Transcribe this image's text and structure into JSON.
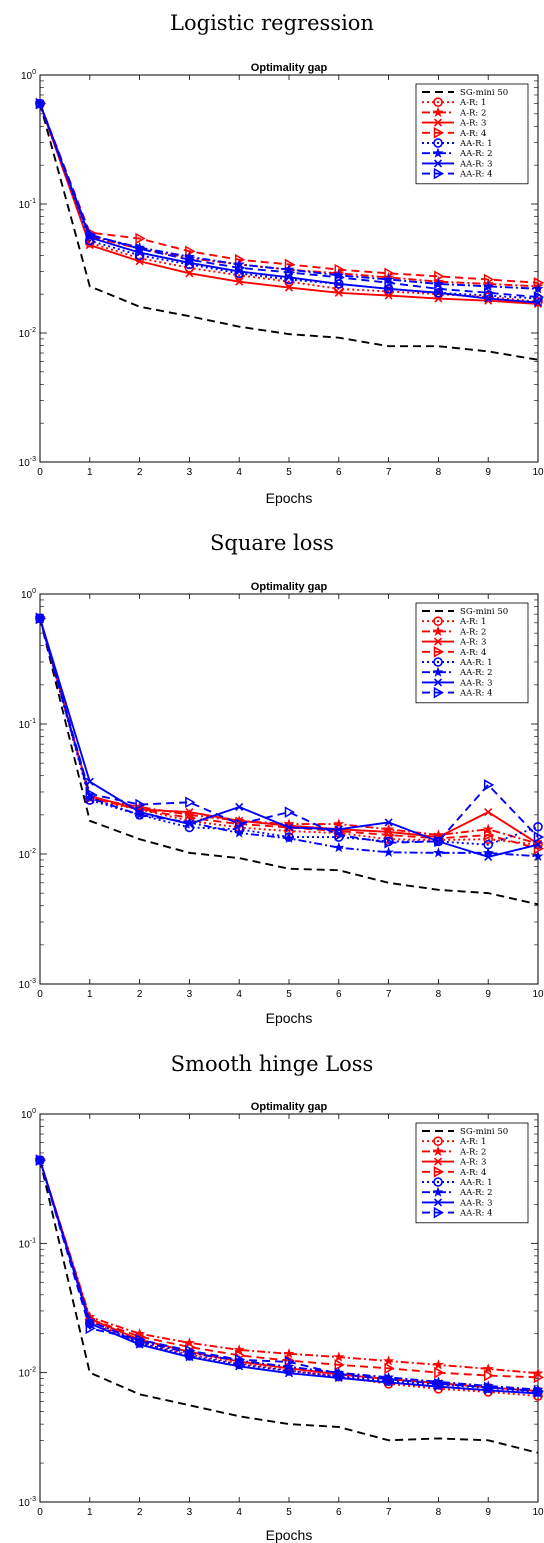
{
  "chart_data": [
    {
      "type": "line",
      "title": "Logistic regression",
      "subtitle": "Optimality gap",
      "xlabel": "Epochs",
      "ylabel": "",
      "yscale": "log",
      "xlim": [
        0,
        10
      ],
      "ylim": [
        0.001,
        1
      ],
      "x": [
        0,
        1,
        2,
        3,
        4,
        5,
        6,
        7,
        8,
        9,
        10
      ],
      "grid": false,
      "legend": "top-right",
      "series": [
        {
          "name": "SG-mini 50",
          "color": "#000000",
          "dash": "dashed",
          "marker": "none",
          "values": [
            0.6,
            0.023,
            0.016,
            0.0135,
            0.0112,
            0.0098,
            0.0092,
            0.0079,
            0.0079,
            0.0072,
            0.0062
          ]
        },
        {
          "name": "A-R: 1",
          "color": "#ff0000",
          "dash": "dotted",
          "marker": "circle",
          "values": [
            0.6,
            0.05,
            0.038,
            0.032,
            0.028,
            0.025,
            0.022,
            0.021,
            0.02,
            0.019,
            0.0175
          ]
        },
        {
          "name": "A-R: 2",
          "color": "#ff0000",
          "dash": "dashdot",
          "marker": "star",
          "values": [
            0.6,
            0.056,
            0.045,
            0.038,
            0.034,
            0.031,
            0.029,
            0.027,
            0.025,
            0.024,
            0.023
          ]
        },
        {
          "name": "A-R: 3",
          "color": "#ff0000",
          "dash": "solid",
          "marker": "x",
          "values": [
            0.6,
            0.048,
            0.036,
            0.029,
            0.025,
            0.0225,
            0.0205,
            0.0195,
            0.0185,
            0.0178,
            0.0168
          ]
        },
        {
          "name": "A-R: 4",
          "color": "#ff0000",
          "dash": "dashed",
          "marker": "triangle",
          "values": [
            0.6,
            0.06,
            0.054,
            0.043,
            0.037,
            0.034,
            0.031,
            0.029,
            0.0275,
            0.026,
            0.0245
          ]
        },
        {
          "name": "AA-R: 1",
          "color": "#0000ff",
          "dash": "dotted",
          "marker": "circle",
          "values": [
            0.6,
            0.052,
            0.04,
            0.034,
            0.029,
            0.026,
            0.024,
            0.022,
            0.0205,
            0.0195,
            0.0185
          ]
        },
        {
          "name": "AA-R: 2",
          "color": "#0000ff",
          "dash": "dashdot",
          "marker": "star",
          "values": [
            0.6,
            0.057,
            0.046,
            0.039,
            0.034,
            0.031,
            0.028,
            0.026,
            0.024,
            0.023,
            0.022
          ]
        },
        {
          "name": "AA-R: 3",
          "color": "#0000ff",
          "dash": "solid",
          "marker": "x",
          "values": [
            0.6,
            0.055,
            0.042,
            0.035,
            0.03,
            0.027,
            0.024,
            0.022,
            0.0205,
            0.0185,
            0.0172
          ]
        },
        {
          "name": "AA-R: 4",
          "color": "#0000ff",
          "dash": "dashed",
          "marker": "triangle",
          "values": [
            0.6,
            0.058,
            0.045,
            0.037,
            0.032,
            0.0295,
            0.027,
            0.0245,
            0.022,
            0.0205,
            0.019
          ]
        }
      ]
    },
    {
      "type": "line",
      "title": "Square loss",
      "subtitle": "Optimality gap",
      "xlabel": "Epochs",
      "ylabel": "",
      "yscale": "log",
      "xlim": [
        0,
        10
      ],
      "ylim": [
        0.001,
        1
      ],
      "x": [
        0,
        1,
        2,
        3,
        4,
        5,
        6,
        7,
        8,
        9,
        10
      ],
      "grid": false,
      "legend": "top-right",
      "series": [
        {
          "name": "SG-mini 50",
          "color": "#000000",
          "dash": "dashed",
          "marker": "none",
          "values": [
            0.65,
            0.018,
            0.013,
            0.0102,
            0.0093,
            0.0077,
            0.0075,
            0.006,
            0.0053,
            0.005,
            0.0041
          ]
        },
        {
          "name": "A-R: 1",
          "color": "#ff0000",
          "dash": "dotted",
          "marker": "circle",
          "values": [
            0.65,
            0.026,
            0.022,
            0.018,
            0.016,
            0.015,
            0.0145,
            0.013,
            0.0128,
            0.013,
            0.0118
          ]
        },
        {
          "name": "A-R: 2",
          "color": "#ff0000",
          "dash": "dashdot",
          "marker": "star",
          "values": [
            0.65,
            0.027,
            0.023,
            0.02,
            0.018,
            0.017,
            0.017,
            0.0155,
            0.014,
            0.0155,
            0.012
          ]
        },
        {
          "name": "A-R: 3",
          "color": "#ff0000",
          "dash": "solid",
          "marker": "x",
          "values": [
            0.65,
            0.028,
            0.022,
            0.021,
            0.018,
            0.0165,
            0.0155,
            0.0148,
            0.0135,
            0.021,
            0.012
          ]
        },
        {
          "name": "A-R: 4",
          "color": "#ff0000",
          "dash": "dashed",
          "marker": "triangle",
          "values": [
            0.65,
            0.027,
            0.022,
            0.019,
            0.017,
            0.016,
            0.015,
            0.014,
            0.0132,
            0.014,
            0.011
          ]
        },
        {
          "name": "AA-R: 1",
          "color": "#0000ff",
          "dash": "dotted",
          "marker": "circle",
          "values": [
            0.65,
            0.026,
            0.02,
            0.016,
            0.0155,
            0.0135,
            0.0135,
            0.0125,
            0.0125,
            0.0118,
            0.0162
          ]
        },
        {
          "name": "AA-R: 2",
          "color": "#0000ff",
          "dash": "dashdot",
          "marker": "star",
          "values": [
            0.65,
            0.027,
            0.02,
            0.0175,
            0.0145,
            0.0132,
            0.0112,
            0.0103,
            0.0102,
            0.0102,
            0.0096
          ]
        },
        {
          "name": "AA-R: 3",
          "color": "#0000ff",
          "dash": "solid",
          "marker": "x",
          "values": [
            0.65,
            0.036,
            0.021,
            0.017,
            0.023,
            0.016,
            0.0155,
            0.0175,
            0.0125,
            0.0095,
            0.0118
          ]
        },
        {
          "name": "AA-R: 4",
          "color": "#0000ff",
          "dash": "dashed",
          "marker": "triangle",
          "values": [
            0.65,
            0.029,
            0.024,
            0.025,
            0.017,
            0.021,
            0.014,
            0.0122,
            0.0125,
            0.034,
            0.0135
          ]
        }
      ]
    },
    {
      "type": "line",
      "title": "Smooth hinge Loss",
      "subtitle": "Optimality gap",
      "xlabel": "Epochs",
      "ylabel": "",
      "yscale": "log",
      "xlim": [
        0,
        10
      ],
      "ylim": [
        0.001,
        1
      ],
      "x": [
        0,
        1,
        2,
        3,
        4,
        5,
        6,
        7,
        8,
        9,
        10
      ],
      "grid": false,
      "legend": "top-right",
      "series": [
        {
          "name": "SG-mini 50",
          "color": "#000000",
          "dash": "dashed",
          "marker": "none",
          "values": [
            0.44,
            0.01,
            0.0068,
            0.0056,
            0.0046,
            0.004,
            0.0038,
            0.003,
            0.0031,
            0.003,
            0.0024
          ]
        },
        {
          "name": "A-R: 1",
          "color": "#ff0000",
          "dash": "dotted",
          "marker": "circle",
          "values": [
            0.44,
            0.025,
            0.017,
            0.0138,
            0.0118,
            0.0104,
            0.0093,
            0.0082,
            0.0075,
            0.0071,
            0.0066
          ]
        },
        {
          "name": "A-R: 2",
          "color": "#ff0000",
          "dash": "dashdot",
          "marker": "star",
          "values": [
            0.44,
            0.027,
            0.02,
            0.017,
            0.015,
            0.014,
            0.0132,
            0.0123,
            0.0115,
            0.0107,
            0.0099
          ]
        },
        {
          "name": "A-R: 3",
          "color": "#ff0000",
          "dash": "solid",
          "marker": "x",
          "values": [
            0.44,
            0.026,
            0.018,
            0.0145,
            0.0122,
            0.0108,
            0.0097,
            0.0089,
            0.0083,
            0.0077,
            0.0072
          ]
        },
        {
          "name": "A-R: 4",
          "color": "#ff0000",
          "dash": "dashed",
          "marker": "triangle",
          "values": [
            0.44,
            0.026,
            0.019,
            0.0158,
            0.0136,
            0.0124,
            0.0115,
            0.0108,
            0.01,
            0.0095,
            0.0092
          ]
        },
        {
          "name": "AA-R: 1",
          "color": "#0000ff",
          "dash": "dotted",
          "marker": "circle",
          "values": [
            0.44,
            0.024,
            0.017,
            0.0135,
            0.0116,
            0.0103,
            0.0094,
            0.0086,
            0.0081,
            0.0076,
            0.0071
          ]
        },
        {
          "name": "AA-R: 2",
          "color": "#0000ff",
          "dash": "dashdot",
          "marker": "star",
          "values": [
            0.44,
            0.025,
            0.0175,
            0.0142,
            0.0124,
            0.0111,
            0.01,
            0.0092,
            0.0085,
            0.0079,
            0.0074
          ]
        },
        {
          "name": "AA-R: 3",
          "color": "#0000ff",
          "dash": "solid",
          "marker": "x",
          "values": [
            0.44,
            0.024,
            0.0165,
            0.0132,
            0.0112,
            0.0099,
            0.0091,
            0.0084,
            0.0078,
            0.0073,
            0.0069
          ]
        },
        {
          "name": "AA-R: 4",
          "color": "#0000ff",
          "dash": "dashed",
          "marker": "triangle",
          "values": [
            0.44,
            0.022,
            0.018,
            0.0148,
            0.0126,
            0.0121,
            0.0098,
            0.0089,
            0.0082,
            0.0077,
            0.0072
          ]
        }
      ]
    }
  ]
}
